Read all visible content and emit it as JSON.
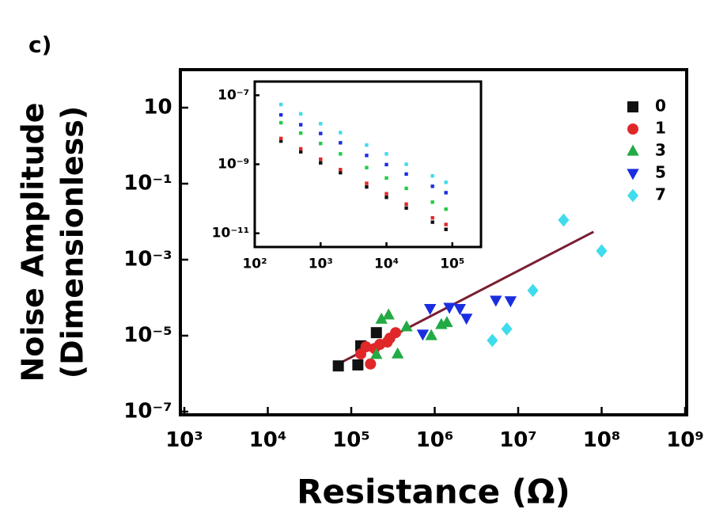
{
  "panel_label": "c)",
  "chart_data": [
    {
      "type": "scatter",
      "log_x": true,
      "log_y": true,
      "xlabel": "Resistance (Ω)",
      "ylabel": [
        "Noise Amplitude",
        "(Dimensionless)"
      ],
      "xlim": [
        1000,
        1000000000
      ],
      "ylim": [
        1e-07,
        100
      ],
      "xticks": [
        {
          "value": 1000,
          "label": "10³"
        },
        {
          "value": 10000,
          "label": "10⁴"
        },
        {
          "value": 100000,
          "label": "10⁵"
        },
        {
          "value": 1000000,
          "label": "10⁶"
        },
        {
          "value": 10000000,
          "label": "10⁷"
        },
        {
          "value": 100000000,
          "label": "10⁸"
        },
        {
          "value": 1000000000,
          "label": "10⁹"
        }
      ],
      "yticks": [
        10,
        {
          "value": 0.1,
          "label": "10⁻¹"
        },
        {
          "value": 0.001,
          "label": "10⁻³"
        },
        {
          "value": 1e-05,
          "label": "10⁻⁵"
        },
        {
          "value": 1e-07,
          "label": "10⁻⁷"
        }
      ],
      "legend": "top-right",
      "series": [
        {
          "name": "0",
          "color": "#111111",
          "marker": "square",
          "x": [
            70000,
            120000,
            130000,
            200000
          ],
          "values": [
            1.6e-06,
            1.7e-06,
            5.4e-06,
            1.2e-05
          ]
        },
        {
          "name": "1",
          "color": "#e02828",
          "marker": "circle",
          "x": [
            130000,
            150000,
            170000,
            190000,
            220000,
            270000,
            290000,
            340000
          ],
          "values": [
            3.3e-06,
            5.1e-06,
            1.8e-06,
            4.6e-06,
            5.9e-06,
            6.8e-06,
            8.6e-06,
            1.2e-05
          ]
        },
        {
          "name": "3",
          "color": "#22aa44",
          "marker": "triangle-up",
          "x": [
            230000,
            280000,
            200000,
            360000,
            460000,
            910000,
            1200000,
            1400000
          ],
          "values": [
            2.7e-05,
            3.5e-05,
            3.2e-06,
            3.3e-06,
            1.7e-05,
            1e-05,
            1.96e-05,
            2.2e-05
          ]
        },
        {
          "name": "5",
          "color": "#1a2ee0",
          "marker": "triangle-down",
          "x": [
            880000,
            1500000,
            2000000,
            2400000,
            720000,
            5400000,
            8100000
          ],
          "values": [
            5.2e-05,
            5.6e-05,
            5.2e-05,
            2.9e-05,
            1.1e-05,
            8.6e-05,
            8.3e-05
          ]
        },
        {
          "name": "7",
          "color": "#3edcec",
          "marker": "diamond",
          "x": [
            35000000,
            100000000,
            15000000,
            7300000,
            4900000
          ],
          "values": [
            0.011,
            0.0017,
            0.000155,
            1.5e-05,
            7.5e-06
          ]
        }
      ],
      "fit_line": {
        "color": "#7a1e32",
        "x": [
          63000,
          80000000
        ],
        "y": [
          1.6e-06,
          0.0054
        ]
      }
    },
    {
      "type": "scatter",
      "log_x": true,
      "log_y": true,
      "xlim": [
        100,
        265000
      ],
      "ylim": [
        4e-12,
        2.5e-07
      ],
      "xticks": [
        {
          "value": 100,
          "label": "10²"
        },
        {
          "value": 1000,
          "label": "10³"
        },
        {
          "value": 10000,
          "label": "10⁴"
        },
        {
          "value": 100000,
          "label": "10⁵"
        }
      ],
      "yticks": [
        {
          "value": 1e-07,
          "label": "10⁻⁷"
        },
        {
          "value": 1e-09,
          "label": "10⁻⁹"
        },
        {
          "value": 1e-11,
          "label": "10⁻¹¹"
        }
      ],
      "series": [
        {
          "color": "#111111",
          "x": [
            250,
            500,
            1000,
            2000,
            5000,
            10000,
            20000,
            50000,
            80000
          ],
          "values": [
            4.7e-09,
            2.3e-09,
            1.1e-09,
            5.7e-10,
            2.2e-10,
            1.1e-10,
            5.4e-11,
            2.1e-11,
            1.3e-11
          ]
        },
        {
          "color": "#e02828",
          "x": [
            250,
            500,
            1000,
            2000,
            5000,
            10000,
            20000,
            50000,
            80000
          ],
          "values": [
            5.6e-09,
            2.8e-09,
            1.4e-09,
            7e-10,
            2.8e-10,
            1.4e-10,
            7e-11,
            2.8e-11,
            1.8e-11
          ]
        },
        {
          "color": "#22cc44",
          "x": [
            250,
            500,
            1000,
            2000,
            5000,
            10000,
            20000,
            50000,
            80000
          ],
          "values": [
            1.6e-08,
            8e-09,
            4e-09,
            2e-09,
            8e-10,
            4e-10,
            2e-10,
            8e-11,
            5e-11
          ]
        },
        {
          "color": "#1a2ee0",
          "x": [
            250,
            500,
            1000,
            2000,
            5000,
            10000,
            20000,
            50000,
            80000
          ],
          "values": [
            2.7e-08,
            1.4e-08,
            7.8e-09,
            4.2e-09,
            1.8e-09,
            9.8e-10,
            5.2e-10,
            2.3e-10,
            1.5e-10
          ]
        },
        {
          "color": "#3edcec",
          "x": [
            250,
            500,
            1000,
            2000,
            5000,
            10000,
            20000,
            50000,
            80000
          ],
          "values": [
            5.4e-08,
            2.9e-08,
            1.5e-08,
            8.3e-09,
            3.6e-09,
            2e-09,
            1e-09,
            4.6e-10,
            3e-10
          ]
        }
      ]
    }
  ]
}
